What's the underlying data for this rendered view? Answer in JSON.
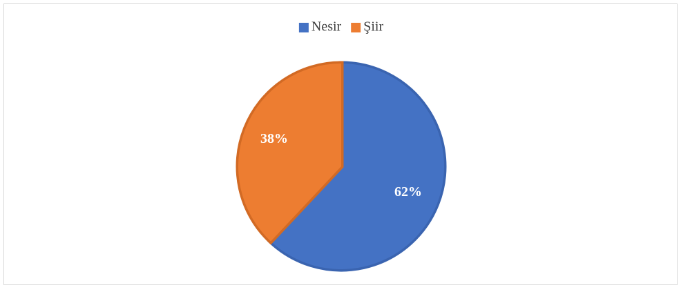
{
  "chart_data": {
    "type": "pie",
    "categories": [
      "Nesir",
      "Şiir"
    ],
    "values": [
      62,
      38
    ],
    "value_labels": [
      "62%",
      "38%"
    ],
    "colors": [
      "#4472c4",
      "#ed7d31"
    ],
    "edge_colors": [
      "#3a64b0",
      "#d26a24"
    ],
    "legend": "top"
  }
}
